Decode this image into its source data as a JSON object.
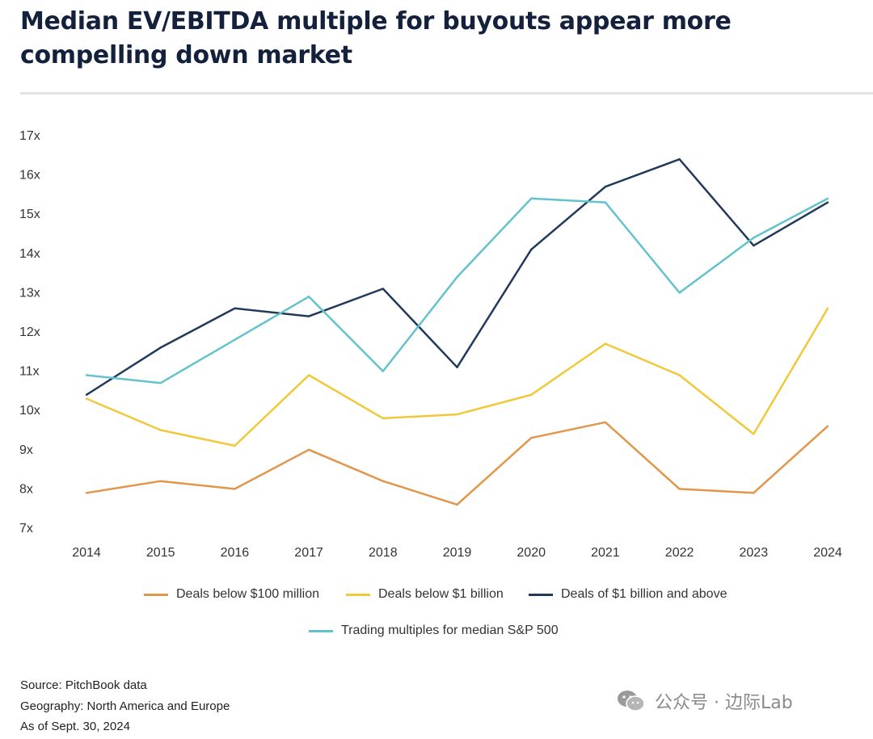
{
  "header": {
    "title_line1": "Median EV/EBITDA multiple for buyouts appear more",
    "title_line2": "compelling  down market"
  },
  "chart_data": {
    "type": "line",
    "x": [
      "2014",
      "2015",
      "2016",
      "2017",
      "2018",
      "2019",
      "2020",
      "2021",
      "2022",
      "2023",
      "2024"
    ],
    "ylim": [
      7,
      17
    ],
    "yticks": [
      "7x",
      "8x",
      "9x",
      "10x",
      "11x",
      "12x",
      "13x",
      "14x",
      "15x",
      "16x",
      "17x"
    ],
    "series": [
      {
        "name": "Deals below $100 million",
        "color": "#e0964b",
        "values": [
          7.9,
          8.2,
          8.0,
          9.0,
          8.2,
          7.6,
          9.3,
          9.7,
          8.0,
          7.9,
          9.6
        ]
      },
      {
        "name": "Deals below $1 billion",
        "color": "#f0c93a",
        "values": [
          10.3,
          9.5,
          9.1,
          10.9,
          9.8,
          9.9,
          10.4,
          11.7,
          10.9,
          9.4,
          12.6
        ]
      },
      {
        "name": "Deals of $1 billion and above",
        "color": "#213a5c",
        "values": [
          10.4,
          11.6,
          12.6,
          12.4,
          13.1,
          11.1,
          14.1,
          15.7,
          16.4,
          14.2,
          15.3
        ]
      },
      {
        "name": "Trading multiples for median S&P 500",
        "color": "#63c2cb",
        "values": [
          10.9,
          10.7,
          11.8,
          12.9,
          11.0,
          13.4,
          15.4,
          15.3,
          13.0,
          14.4,
          15.4
        ]
      }
    ],
    "legend_position": "bottom"
  },
  "footer": {
    "source": "Source: PitchBook data",
    "geography": "Geography: North America and Europe",
    "as_of": "As of Sept. 30, 2024"
  },
  "watermark": {
    "text": "公众号 · 边际Lab",
    "icon": "wechat-icon"
  }
}
